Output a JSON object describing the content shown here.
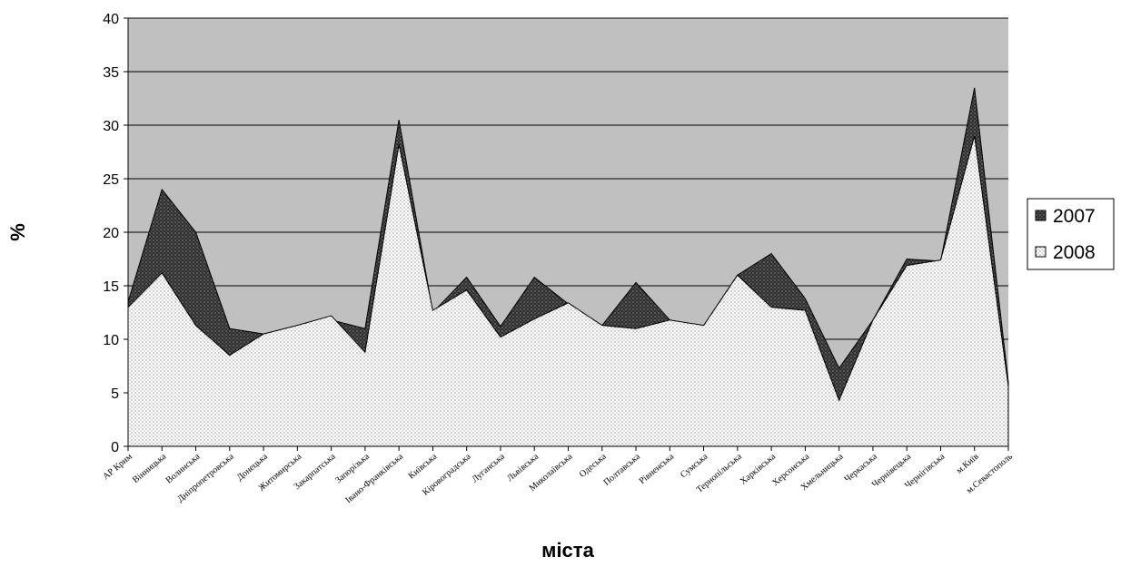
{
  "chart_data": {
    "type": "area",
    "stacked": false,
    "categories": [
      "АР Крим",
      "Вінницька",
      "Волинська",
      "Дніпропетровська",
      "Донецька",
      "Житомирська",
      "Закарпатська",
      "Запорізька",
      "Івано-Франківська",
      "Київська",
      "Кіровоградська",
      "Луганська",
      "Львівська",
      "Миколаївська",
      "Одеська",
      "Полтавська",
      "Рівненська",
      "Сумська",
      "Тернопільська",
      "Харківська",
      "Херсонська",
      "Хмельницька",
      "Черкаська",
      "Чернівецька",
      "Чернігівська",
      "м.Київ",
      "м.Севастополь"
    ],
    "series": [
      {
        "name": "2007",
        "color": "#2b2b2b",
        "pattern": "dark-dotted",
        "values": [
          13.5,
          24.0,
          20.0,
          11.0,
          10.5,
          11.2,
          11.8,
          11.0,
          30.5,
          12.5,
          15.8,
          11.2,
          15.8,
          13.3,
          11.3,
          15.3,
          11.8,
          11.2,
          16.0,
          18.0,
          13.8,
          7.3,
          11.8,
          17.5,
          17.3,
          33.5,
          6.0
        ]
      },
      {
        "name": "2008",
        "color": "#ffffff",
        "pattern": "light-dotted",
        "values": [
          13.0,
          16.2,
          11.3,
          8.5,
          10.5,
          11.3,
          12.2,
          8.8,
          28.2,
          12.7,
          14.6,
          10.2,
          11.9,
          13.4,
          11.3,
          11.0,
          11.8,
          11.3,
          16.0,
          13.0,
          12.7,
          4.3,
          11.8,
          16.9,
          17.4,
          29.0,
          5.6
        ]
      }
    ],
    "xlabel": "міста",
    "ylabel": "%",
    "ylim": [
      0,
      40
    ],
    "yticks": [
      "0",
      "5",
      "10",
      "15",
      "20",
      "25",
      "30",
      "35",
      "40"
    ],
    "grid": true,
    "legend": "right"
  }
}
